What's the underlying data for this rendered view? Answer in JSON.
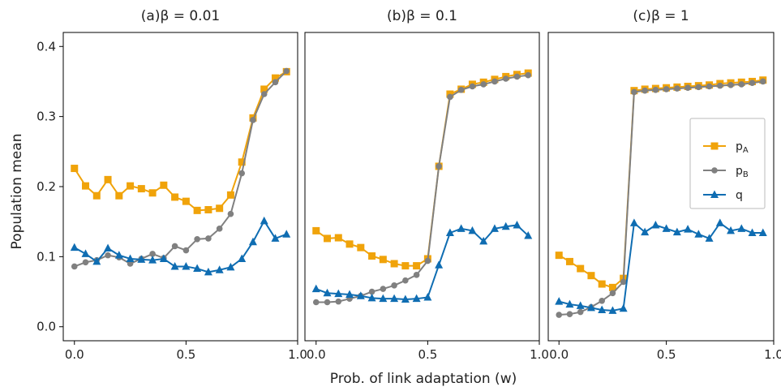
{
  "figure": {
    "xlabel": "Prob. of link adaptation (w)",
    "ylabel": "Population mean"
  },
  "legend": {
    "placement": "center-right of panel (c)",
    "entries": [
      {
        "main": "p",
        "sub": "A",
        "series": "pA"
      },
      {
        "main": "p",
        "sub": "B",
        "series": "pB"
      },
      {
        "main": "q",
        "sub": "",
        "series": "q"
      }
    ]
  },
  "colors": {
    "pA": "#f0a30a",
    "pB": "#808080",
    "q": "#0f6db2"
  },
  "chart_data": [
    {
      "type": "line",
      "title": "(a)β = 0.01",
      "xlim": [
        -0.05,
        1.0
      ],
      "ylim": [
        -0.02,
        0.42
      ],
      "x_ticks": [
        "0.0",
        "0.5",
        "1.0"
      ],
      "y_ticks": [
        "0.0",
        "0.1",
        "0.2",
        "0.3",
        "0.4"
      ],
      "x": [
        0.0,
        0.05,
        0.1,
        0.15,
        0.2,
        0.25,
        0.3,
        0.35,
        0.4,
        0.45,
        0.5,
        0.55,
        0.6,
        0.65,
        0.7,
        0.75,
        0.8,
        0.85,
        0.9,
        0.95
      ],
      "series": [
        {
          "name": "pA",
          "marker": "square",
          "values": [
            0.226,
            0.201,
            0.187,
            0.21,
            0.187,
            0.201,
            0.197,
            0.191,
            0.202,
            0.185,
            0.179,
            0.166,
            0.167,
            0.169,
            0.188,
            0.235,
            0.298,
            0.339,
            0.355,
            0.364
          ]
        },
        {
          "name": "pB",
          "marker": "circle",
          "values": [
            0.086,
            0.092,
            0.095,
            0.102,
            0.099,
            0.09,
            0.097,
            0.104,
            0.098,
            0.115,
            0.109,
            0.125,
            0.126,
            0.14,
            0.161,
            0.219,
            0.295,
            0.332,
            0.349,
            0.365
          ]
        },
        {
          "name": "q",
          "marker": "triangle",
          "values": [
            0.113,
            0.104,
            0.093,
            0.112,
            0.102,
            0.097,
            0.096,
            0.095,
            0.097,
            0.086,
            0.086,
            0.083,
            0.078,
            0.081,
            0.085,
            0.097,
            0.121,
            0.151,
            0.126,
            0.132
          ]
        }
      ]
    },
    {
      "type": "line",
      "title": "(b)β = 0.1",
      "xlim": [
        -0.05,
        1.0
      ],
      "ylim": [
        -0.02,
        0.42
      ],
      "x_ticks": [
        "0.0",
        "0.5",
        "1.0"
      ],
      "y_ticks": [],
      "x": [
        0.0,
        0.05,
        0.1,
        0.15,
        0.2,
        0.25,
        0.3,
        0.35,
        0.4,
        0.45,
        0.5,
        0.55,
        0.6,
        0.65,
        0.7,
        0.75,
        0.8,
        0.85,
        0.9,
        0.95
      ],
      "series": [
        {
          "name": "pA",
          "marker": "square",
          "values": [
            0.137,
            0.126,
            0.127,
            0.118,
            0.113,
            0.101,
            0.096,
            0.09,
            0.087,
            0.087,
            0.097,
            0.229,
            0.332,
            0.339,
            0.346,
            0.349,
            0.353,
            0.357,
            0.36,
            0.362
          ]
        },
        {
          "name": "pB",
          "marker": "circle",
          "values": [
            0.035,
            0.035,
            0.036,
            0.04,
            0.044,
            0.05,
            0.054,
            0.059,
            0.066,
            0.074,
            0.094,
            0.229,
            0.328,
            0.338,
            0.343,
            0.346,
            0.35,
            0.354,
            0.357,
            0.359
          ]
        },
        {
          "name": "q",
          "marker": "triangle",
          "values": [
            0.054,
            0.048,
            0.047,
            0.046,
            0.044,
            0.041,
            0.04,
            0.04,
            0.039,
            0.04,
            0.042,
            0.088,
            0.134,
            0.14,
            0.137,
            0.122,
            0.14,
            0.143,
            0.145,
            0.13
          ]
        }
      ]
    },
    {
      "type": "line",
      "title": "(c)β = 1",
      "xlim": [
        -0.05,
        1.0
      ],
      "ylim": [
        -0.02,
        0.42
      ],
      "x_ticks": [
        "0.0",
        "0.5",
        "1.0"
      ],
      "y_ticks": [],
      "x": [
        0.0,
        0.05,
        0.1,
        0.15,
        0.2,
        0.25,
        0.3,
        0.35,
        0.4,
        0.45,
        0.5,
        0.55,
        0.6,
        0.65,
        0.7,
        0.75,
        0.8,
        0.85,
        0.9,
        0.95
      ],
      "series": [
        {
          "name": "pA",
          "marker": "square",
          "values": [
            0.102,
            0.093,
            0.083,
            0.073,
            0.061,
            0.056,
            0.069,
            0.337,
            0.339,
            0.34,
            0.341,
            0.342,
            0.343,
            0.344,
            0.345,
            0.347,
            0.348,
            0.349,
            0.35,
            0.352
          ]
        },
        {
          "name": "pB",
          "marker": "circle",
          "values": [
            0.017,
            0.018,
            0.021,
            0.028,
            0.037,
            0.048,
            0.064,
            0.335,
            0.337,
            0.338,
            0.339,
            0.34,
            0.341,
            0.342,
            0.343,
            0.344,
            0.345,
            0.346,
            0.348,
            0.35
          ]
        },
        {
          "name": "q",
          "marker": "triangle",
          "values": [
            0.036,
            0.032,
            0.03,
            0.027,
            0.024,
            0.023,
            0.026,
            0.148,
            0.135,
            0.145,
            0.14,
            0.135,
            0.139,
            0.132,
            0.126,
            0.148,
            0.137,
            0.14,
            0.134,
            0.134
          ]
        }
      ]
    }
  ]
}
